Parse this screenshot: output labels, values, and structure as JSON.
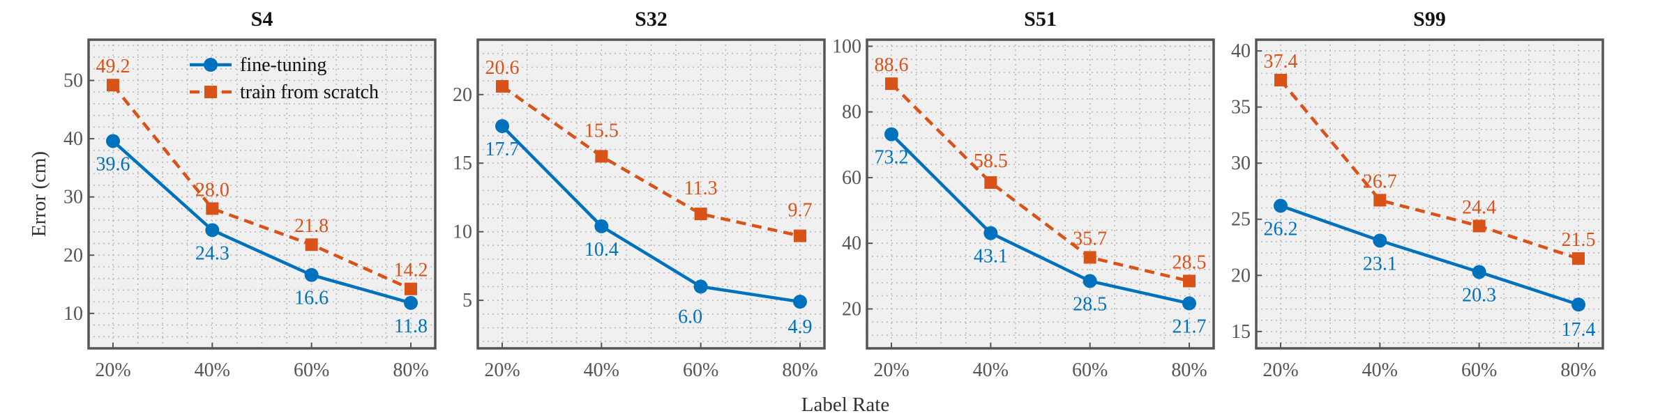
{
  "chart_data": [
    {
      "type": "line",
      "title": "S4",
      "categories": [
        "20%",
        "40%",
        "60%",
        "80%"
      ],
      "ylim": [
        4,
        57
      ],
      "yticks": [
        10,
        20,
        30,
        40,
        50
      ],
      "ylabel": "Error (cm)",
      "series": [
        {
          "name": "fine-tuning",
          "values": [
            39.6,
            24.3,
            16.6,
            11.8
          ],
          "labels": [
            "39.6",
            "24.3",
            "16.6",
            "11.8"
          ]
        },
        {
          "name": "train from scratch",
          "values": [
            49.2,
            28.0,
            21.8,
            14.2
          ],
          "labels": [
            "49.2",
            "28.0",
            "21.8",
            "14.2"
          ]
        }
      ]
    },
    {
      "type": "line",
      "title": "S32",
      "categories": [
        "20%",
        "40%",
        "60%",
        "80%"
      ],
      "ylim": [
        1.5,
        24
      ],
      "yticks": [
        5,
        10,
        15,
        20
      ],
      "series": [
        {
          "name": "fine-tuning",
          "values": [
            17.7,
            10.4,
            6.0,
            4.9
          ],
          "labels": [
            "17.7",
            "10.4",
            "6.0",
            "4.9"
          ]
        },
        {
          "name": "train from scratch",
          "values": [
            20.6,
            15.5,
            11.3,
            9.7
          ],
          "labels": [
            "20.6",
            "15.5",
            "11.3",
            "9.7"
          ]
        }
      ]
    },
    {
      "type": "line",
      "title": "S51",
      "categories": [
        "20%",
        "40%",
        "60%",
        "80%"
      ],
      "ylim": [
        8,
        102
      ],
      "yticks": [
        20,
        40,
        60,
        80,
        100
      ],
      "series": [
        {
          "name": "fine-tuning",
          "values": [
            73.2,
            43.1,
            28.5,
            21.7
          ],
          "labels": [
            "73.2",
            "43.1",
            "28.5",
            "21.7"
          ]
        },
        {
          "name": "train from scratch",
          "values": [
            88.6,
            58.5,
            35.7,
            28.5
          ],
          "labels": [
            "88.6",
            "58.5",
            "35.7",
            "28.5"
          ]
        }
      ]
    },
    {
      "type": "line",
      "title": "S99",
      "categories": [
        "20%",
        "40%",
        "60%",
        "80%"
      ],
      "ylim": [
        13.5,
        41
      ],
      "yticks": [
        15,
        20,
        25,
        30,
        35,
        40
      ],
      "series": [
        {
          "name": "fine-tuning",
          "values": [
            26.2,
            23.1,
            20.3,
            17.4
          ],
          "labels": [
            "26.2",
            "23.1",
            "20.3",
            "17.4"
          ]
        },
        {
          "name": "train from scratch",
          "values": [
            37.4,
            26.7,
            24.4,
            21.5
          ],
          "labels": [
            "37.4",
            "26.7",
            "24.4",
            "21.5"
          ]
        }
      ]
    }
  ],
  "xlabel": "Label Rate",
  "legend": {
    "placement": "top-left of first panel",
    "entries": [
      "fine-tuning",
      "train from scratch"
    ]
  },
  "colors": {
    "fine_tuning": "#0072BD",
    "scratch": "#D95319",
    "panel_bg": "#f0f0f0",
    "frame": "#555555",
    "grid": "#b8b8b8"
  }
}
